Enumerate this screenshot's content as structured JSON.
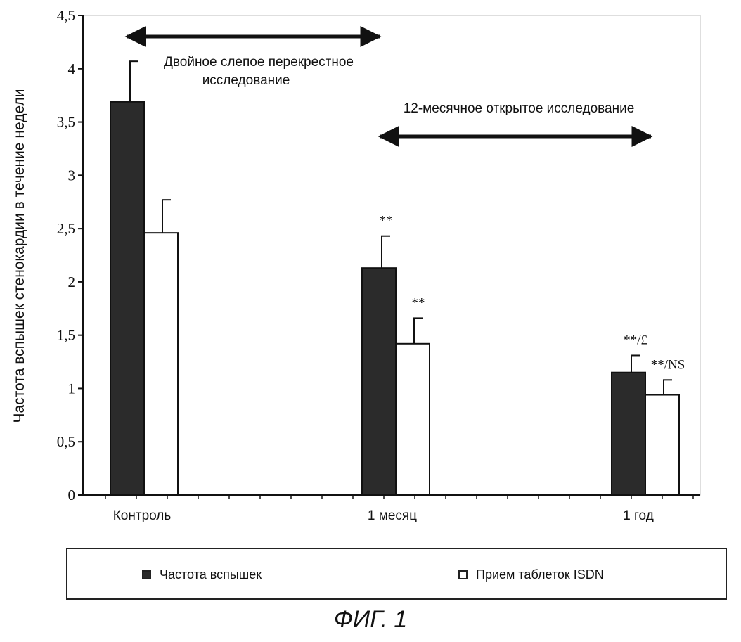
{
  "chart_data": {
    "type": "bar",
    "ylabel": "Частота вспышек стенокардии в течение недели",
    "xlabel": "",
    "ylim": [
      0,
      4.5
    ],
    "yticks": [
      "0",
      "0,5",
      "1",
      "1,5",
      "2",
      "2,5",
      "3",
      "3,5",
      "4",
      "4,5"
    ],
    "categories": [
      "Контроль",
      "1 месяц",
      "1 год"
    ],
    "series": [
      {
        "name": "Частота вспышек",
        "color": "#2b2b2b",
        "values": [
          3.69,
          2.13,
          1.15
        ],
        "errors": [
          0.38,
          0.3,
          0.16
        ]
      },
      {
        "name": "Прием таблеток ISDN",
        "color": "#ffffff",
        "values": [
          2.46,
          1.42,
          0.94
        ],
        "errors": [
          0.31,
          0.24,
          0.14
        ]
      }
    ],
    "significance": [
      [
        "",
        "**",
        "**/£"
      ],
      [
        "",
        "**",
        "**/NS"
      ]
    ],
    "annotations": [
      {
        "text_lines": [
          "Двойное слепое перекрестное",
          "исследование"
        ]
      },
      {
        "text_lines": [
          "12-месячное открытое исследование"
        ]
      }
    ],
    "legend": {
      "position": "bottom"
    },
    "grid": false
  },
  "figure": {
    "caption": "ФИГ. 1"
  }
}
